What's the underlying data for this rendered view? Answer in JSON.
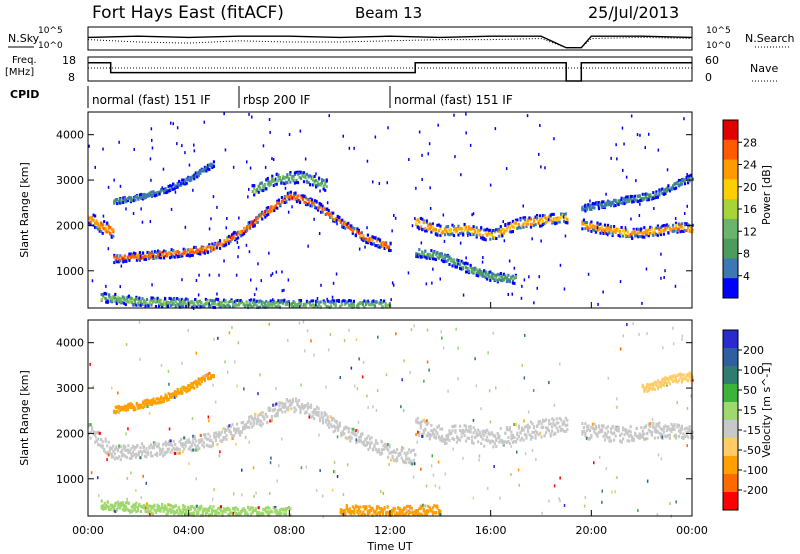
{
  "header": {
    "title": "Fort Hays East (fitACF)",
    "beam": "Beam 13",
    "date": "25/Jul/2013"
  },
  "labels": {
    "nsky": "N.Sky",
    "nsearch": "N.Search",
    "freq": "Freq.",
    "freq_unit": "[MHz]",
    "nave": "Nave",
    "cpid": "CPID"
  },
  "colors": {
    "power": [
      "#0000ff",
      "#3c78b4",
      "#4c9c5c",
      "#6cb46c",
      "#a8d438",
      "#ffd000",
      "#ff9a00",
      "#ff5a00",
      "#e00000"
    ],
    "velocity": [
      "#ff0000",
      "#ff6a00",
      "#ffa000",
      "#ffcc66",
      "#c8c8c8",
      "#9fd86c",
      "#3cb43c",
      "#2e7d6e",
      "#2f5f9e",
      "#2a2acf"
    ]
  },
  "chart_data": [
    {
      "type": "line",
      "title": "",
      "ylabel_left": "N.Sky",
      "ylabel_right": "N.Search",
      "yticks_left": [
        "10^5",
        "10^0"
      ],
      "yticks_right": [
        "10^5",
        "10^0"
      ],
      "xlim": [
        0,
        24
      ],
      "series": [
        {
          "name": "N.Sky",
          "x": [
            0,
            2,
            4,
            6,
            8,
            10,
            12,
            14,
            16,
            18,
            19,
            19.6,
            20,
            22,
            24
          ],
          "y": [
            0.55,
            0.6,
            0.55,
            0.6,
            0.6,
            0.55,
            0.6,
            0.55,
            0.6,
            0.6,
            0.1,
            0.1,
            0.6,
            0.6,
            0.55
          ]
        },
        {
          "name": "N.Search",
          "x": [
            0,
            2,
            4,
            6,
            8,
            10,
            12,
            14,
            16,
            18,
            19,
            19.6,
            20,
            22,
            24
          ],
          "y": [
            0.45,
            0.35,
            0.3,
            0.4,
            0.35,
            0.35,
            0.4,
            0.45,
            0.45,
            0.5,
            0.1,
            0.1,
            0.5,
            0.55,
            0.5
          ]
        }
      ]
    },
    {
      "type": "line",
      "title": "",
      "ylabel_left": "Freq. [MHz]",
      "ylabel_right": "Nave",
      "yticks_left": [
        "18",
        "8"
      ],
      "yticks_right": [
        "60",
        "0"
      ],
      "ylim_left": [
        8,
        18
      ],
      "xlim": [
        0,
        24
      ],
      "series": [
        {
          "name": "Freq.",
          "x": [
            0,
            0.9,
            0.9,
            6,
            6,
            13,
            13,
            19,
            19,
            19.6,
            19.6,
            24
          ],
          "y": [
            15.6,
            15.6,
            11.5,
            11.5,
            11.5,
            11.5,
            15.6,
            15.6,
            8,
            8,
            15.6,
            15.6
          ]
        },
        {
          "name": "Nave",
          "x": [
            0,
            24
          ],
          "y": [
            13.4,
            13.4
          ]
        }
      ]
    },
    {
      "type": "table",
      "title": "CPID",
      "segments": [
        {
          "label": "normal (fast) 151 IF",
          "start": 0,
          "end": 6
        },
        {
          "label": "rbsp 200 IF",
          "start": 6,
          "end": 12
        },
        {
          "label": "normal (fast) 151 IF",
          "start": 12,
          "end": 24
        }
      ]
    },
    {
      "type": "heatmap",
      "title": "",
      "ylabel": "Slant Range [km]",
      "xlabel": "",
      "xlim": [
        0,
        24
      ],
      "ylim": [
        180,
        4500
      ],
      "yticks": [
        1000,
        2000,
        3000,
        4000
      ],
      "colorbar_label": "Power [dB]",
      "colorbar_ticks": [
        4,
        8,
        12,
        16,
        20,
        24,
        28
      ],
      "colorbar_range": [
        0,
        32
      ],
      "bands": [
        {
          "x": [
            0,
            0.5,
            1
          ],
          "y": [
            2200,
            2000,
            1900
          ],
          "width": 300,
          "value": 24
        },
        {
          "x": [
            1,
            2,
            3,
            4,
            5,
            6,
            7,
            8,
            9,
            10,
            11,
            12
          ],
          "y": [
            1300,
            1350,
            1400,
            1450,
            1550,
            1850,
            2300,
            2700,
            2500,
            2100,
            1750,
            1550
          ],
          "width": 180,
          "value": 26
        },
        {
          "x": [
            6.5,
            7.5,
            8.5,
            9.5
          ],
          "y": [
            2800,
            3050,
            3100,
            2900
          ],
          "width": 250,
          "value": 12
        },
        {
          "x": [
            1,
            2,
            3,
            4,
            5
          ],
          "y": [
            2550,
            2650,
            2800,
            3050,
            3400
          ],
          "width": 120,
          "value": 6
        },
        {
          "x": [
            0.5,
            2,
            4,
            6,
            9,
            12
          ],
          "y": [
            450,
            350,
            320,
            300,
            280,
            280
          ],
          "width": 200,
          "value": 12
        },
        {
          "x": [
            13,
            14,
            15,
            16,
            17,
            18,
            19
          ],
          "y": [
            2100,
            1900,
            1950,
            1800,
            2050,
            2150,
            2200
          ],
          "width": 250,
          "value": 22
        },
        {
          "x": [
            13,
            14,
            15,
            16,
            17
          ],
          "y": [
            1450,
            1350,
            1100,
            900,
            850
          ],
          "width": 200,
          "value": 10
        },
        {
          "x": [
            19.6,
            20.5,
            21.5,
            22.5,
            23.5,
            24
          ],
          "y": [
            2050,
            1950,
            1850,
            1900,
            2000,
            1950
          ],
          "width": 220,
          "value": 23
        },
        {
          "x": [
            19.6,
            21,
            22.5,
            24
          ],
          "y": [
            2400,
            2550,
            2700,
            3100
          ],
          "width": 150,
          "value": 7
        }
      ]
    },
    {
      "type": "heatmap",
      "title": "",
      "ylabel": "Slant Range [km]",
      "xlabel": "Time UT",
      "xlim": [
        0,
        24
      ],
      "ylim": [
        180,
        4500
      ],
      "yticks": [
        1000,
        2000,
        3000,
        4000
      ],
      "xticks": [
        "00:00",
        "04:00",
        "08:00",
        "12:00",
        "16:00",
        "20:00",
        "00:00"
      ],
      "colorbar_label": "Velocity [m s^-1]",
      "colorbar_ticks": [
        -200,
        -100,
        -50,
        -15,
        15,
        50,
        100,
        200
      ],
      "bands": [
        {
          "x": [
            0,
            1,
            3,
            5,
            7,
            8,
            9,
            10,
            11,
            12,
            13
          ],
          "y": [
            2100,
            1600,
            1700,
            1900,
            2400,
            2700,
            2500,
            2100,
            1850,
            1600,
            1500
          ],
          "width": 320,
          "value": -10
        },
        {
          "x": [
            1,
            2,
            3,
            4,
            5
          ],
          "y": [
            2550,
            2650,
            2800,
            3050,
            3350
          ],
          "width": 150,
          "value": -60
        },
        {
          "x": [
            0.5,
            2,
            4,
            6,
            8
          ],
          "y": [
            450,
            380,
            330,
            300,
            290
          ],
          "width": 220,
          "value": 40
        },
        {
          "x": [
            10,
            11,
            12,
            13,
            14
          ],
          "y": [
            350,
            330,
            320,
            330,
            350
          ],
          "width": 200,
          "value": -90
        },
        {
          "x": [
            13,
            14,
            15,
            16,
            17,
            18,
            19
          ],
          "y": [
            2200,
            2000,
            2050,
            1900,
            2050,
            2150,
            2200
          ],
          "width": 400,
          "value": 0
        },
        {
          "x": [
            19.6,
            21,
            22.5,
            24
          ],
          "y": [
            2100,
            2000,
            2100,
            2050
          ],
          "width": 350,
          "value": 0
        },
        {
          "x": [
            22,
            23,
            24
          ],
          "y": [
            3000,
            3200,
            3300
          ],
          "width": 200,
          "value": -40
        }
      ]
    }
  ]
}
